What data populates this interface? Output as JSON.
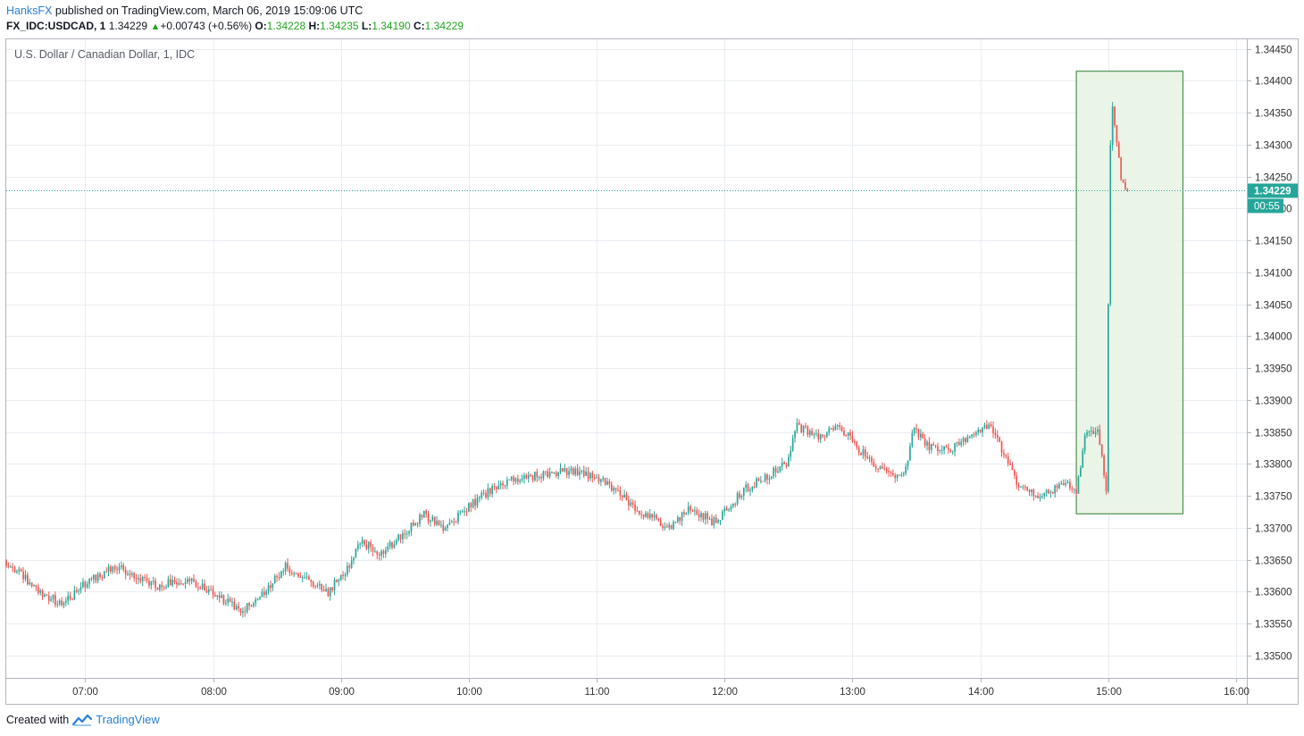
{
  "header": {
    "author": "HanksFX",
    "published_text": " published on TradingView.com, March 06, 2019 15:09:06 UTC",
    "symbol": "FX_IDC:USDCAD, 1",
    "last": "1.34229",
    "change": "+0.00743 (+0.56%)",
    "open_label": "O:",
    "open": "1.34228",
    "high_label": "H:",
    "high": "1.34235",
    "low_label": "L:",
    "low": "1.34190",
    "close_label": "C:",
    "close": "1.34229"
  },
  "footer": {
    "created_with": "Created with",
    "brand": "TradingView"
  },
  "colors": {
    "up": "#26a69a",
    "down": "#ef5350",
    "grid": "#e9edf2",
    "price_line": "#26a69a",
    "highlight_fill": "#e8f3e3",
    "highlight_border": "#2e7d32",
    "label_bg": "#26a69a"
  },
  "chart_data": {
    "type": "candlestick",
    "title": "U.S. Dollar / Canadian Dollar, 1, IDC",
    "x_ticks": [
      "07:00",
      "08:00",
      "09:00",
      "10:00",
      "11:00",
      "12:00",
      "13:00",
      "14:00",
      "15:00",
      "16:00"
    ],
    "y_ticks": [
      "1.33500",
      "1.33550",
      "1.33600",
      "1.33650",
      "1.33700",
      "1.33750",
      "1.33800",
      "1.33850",
      "1.33900",
      "1.33950",
      "1.34000",
      "1.34050",
      "1.34100",
      "1.34150",
      "1.34200",
      "1.34250",
      "1.34300",
      "1.34350",
      "1.34400",
      "1.34450"
    ],
    "ylim": [
      1.33465,
      1.34465
    ],
    "x_range_minutes": [
      383,
      965
    ],
    "time_start_minutes": 383,
    "bar_interval_minutes": 1,
    "last_price": "1.34229",
    "countdown": "00:55",
    "highlight_box": {
      "time_start": "14:45",
      "time_end": "15:35",
      "price_low": 1.33722,
      "price_high": 1.34415
    },
    "key_prices": [
      [
        "06:23",
        1.3365
      ],
      [
        "06:40",
        1.336
      ],
      [
        "06:50",
        1.3358
      ],
      [
        "07:00",
        1.3361
      ],
      [
        "07:15",
        1.3364
      ],
      [
        "07:35",
        1.3361
      ],
      [
        "07:50",
        1.3362
      ],
      [
        "08:05",
        1.3359
      ],
      [
        "08:15",
        1.3357
      ],
      [
        "08:25",
        1.336
      ],
      [
        "08:35",
        1.3364
      ],
      [
        "08:45",
        1.3362
      ],
      [
        "08:55",
        1.336
      ],
      [
        "09:05",
        1.3364
      ],
      [
        "09:10",
        1.3368
      ],
      [
        "09:20",
        1.3366
      ],
      [
        "09:30",
        1.3369
      ],
      [
        "09:40",
        1.3372
      ],
      [
        "09:50",
        1.337
      ],
      [
        "10:00",
        1.3373
      ],
      [
        "10:15",
        1.3377
      ],
      [
        "10:30",
        1.3378
      ],
      [
        "10:45",
        1.3379
      ],
      [
        "11:00",
        1.3378
      ],
      [
        "11:10",
        1.3376
      ],
      [
        "11:20",
        1.3373
      ],
      [
        "11:35",
        1.337
      ],
      [
        "11:45",
        1.3373
      ],
      [
        "11:55",
        1.3371
      ],
      [
        "12:00",
        1.3372
      ],
      [
        "12:10",
        1.3376
      ],
      [
        "12:20",
        1.3378
      ],
      [
        "12:30",
        1.338
      ],
      [
        "12:35",
        1.3386
      ],
      [
        "12:45",
        1.3384
      ],
      [
        "12:55",
        1.3386
      ],
      [
        "13:05",
        1.3382
      ],
      [
        "13:15",
        1.3379
      ],
      [
        "13:25",
        1.3378
      ],
      [
        "13:30",
        1.3386
      ],
      [
        "13:35",
        1.3383
      ],
      [
        "13:45",
        1.3382
      ],
      [
        "13:55",
        1.3384
      ],
      [
        "14:05",
        1.3386
      ],
      [
        "14:10",
        1.3383
      ],
      [
        "14:20",
        1.3376
      ],
      [
        "14:30",
        1.3375
      ],
      [
        "14:40",
        1.3377
      ],
      [
        "14:46",
        1.3376
      ],
      [
        "14:50",
        1.3384
      ],
      [
        "14:56",
        1.3386
      ],
      [
        "15:00",
        1.3376
      ],
      [
        "15:01",
        1.3405
      ],
      [
        "15:02",
        1.343
      ],
      [
        "15:03",
        1.3436
      ],
      [
        "15:05",
        1.343
      ],
      [
        "15:07",
        1.3425
      ],
      [
        "15:09",
        1.34229
      ]
    ]
  }
}
